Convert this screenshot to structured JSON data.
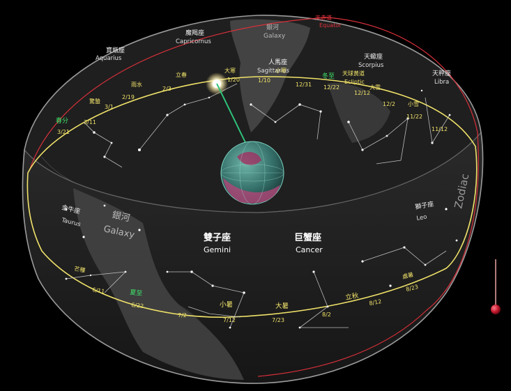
{
  "diagram": {
    "top_constellations": [
      {
        "zh": "寶瓶座",
        "en": "Aquarius"
      },
      {
        "zh": "魔羯座",
        "en": "Capricornus"
      },
      {
        "zh": "人馬座",
        "en": "Sagittarius"
      },
      {
        "zh": "天蠍座",
        "en": "Scorpius"
      },
      {
        "zh": "天秤座",
        "en": "Libra"
      }
    ],
    "front_constellations": [
      {
        "zh": "金牛座",
        "en": "Taurus"
      },
      {
        "zh": "雙子座",
        "en": "Gemini"
      },
      {
        "zh": "巨蟹座",
        "en": "Cancer"
      },
      {
        "zh": "獅子座",
        "en": "Leo"
      }
    ],
    "galaxy_top": {
      "zh": "銀河",
      "en": "Galaxy"
    },
    "galaxy_front": {
      "zh": "銀河",
      "en": "Galaxy"
    },
    "equator_label": {
      "zh": "天赤道",
      "en": "Equator"
    },
    "ecliptic_label": {
      "zh": "天球黄道",
      "en": "Ecliptic"
    },
    "zodiac_word": "Zodiac",
    "top_ecliptic_marks": [
      {
        "date": "3/11",
        "term": "驚蟄"
      },
      {
        "date": "2/19",
        "term": "雨水"
      },
      {
        "date": "2/3",
        "term": "立春"
      },
      {
        "date": "1/20",
        "term": "大寒"
      },
      {
        "date": "1/10",
        "term": ""
      },
      {
        "date": "12/31",
        "term": "小寒"
      },
      {
        "date": "12/22",
        "term": "冬至"
      },
      {
        "date": "12/12",
        "term": "大雪"
      },
      {
        "date": "12/2",
        "term": "小雪"
      },
      {
        "date": "11/22",
        "term": ""
      },
      {
        "date": "11/12",
        "term": ""
      }
    ],
    "left_marks": [
      {
        "date": "3/21",
        "term": "春分"
      },
      {
        "date": "3/1",
        "term": "驚蟄"
      }
    ],
    "front_ecliptic_marks": [
      {
        "date": "6/11",
        "term": "芒種"
      },
      {
        "date": "6/22",
        "term": "夏至"
      },
      {
        "date": "7/2",
        "term": ""
      },
      {
        "date": "7/12",
        "term": "小暑"
      },
      {
        "date": "7/23",
        "term": "大暑"
      },
      {
        "date": "8/2",
        "term": ""
      },
      {
        "date": "8/12",
        "term": "立秋"
      },
      {
        "date": "8/23",
        "term": "處暑"
      }
    ],
    "colors": {
      "ecliptic": "#f1e36a",
      "equator": "#d8303a",
      "sun_ray": "#2fc27a",
      "solstice_term": "#3fe36a",
      "marker_ball": "#c0162b"
    }
  }
}
